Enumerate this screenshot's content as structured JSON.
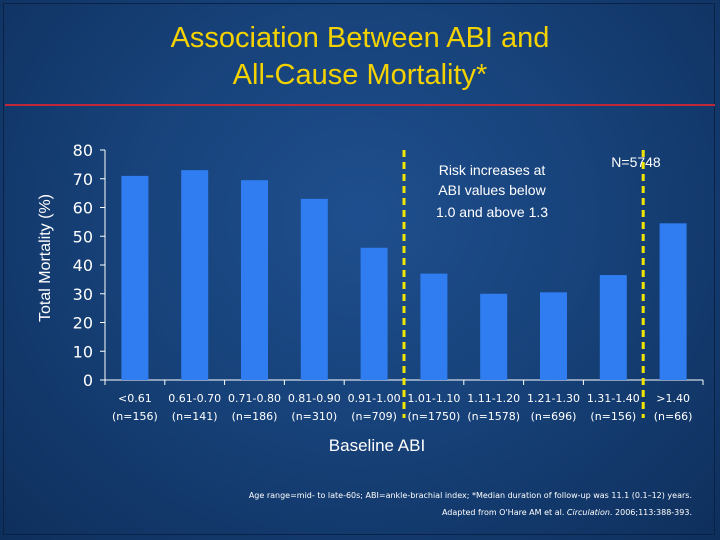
{
  "title_line1": "Association Between ABI and",
  "title_line2": "All-Cause Mortality*",
  "annotation_lines": [
    "Risk increases at",
    "ABI values below",
    "1.0 and above 1.3"
  ],
  "sample_size": "N=5748",
  "footnote": {
    "line1": "Age range=mid- to late-60s; ABI=ankle-brachial index; *Median duration of follow-up was 11.1 (0.1–12) years.",
    "line2_prefix": "Adapted from O'Hare AM et al. ",
    "line2_journal": "Circulation",
    "line2_suffix": ". 2006;113:388-393."
  },
  "colors": {
    "bar": "#2f7df0",
    "title": "#f4d200",
    "divider": "#c0283a",
    "guide": "#f2e600",
    "text": "#ffffff"
  },
  "chart_data": {
    "type": "bar",
    "title": "Association Between ABI and All-Cause Mortality*",
    "xlabel": "Baseline ABI",
    "ylabel": "Total Mortality (%)",
    "ylim": [
      0,
      80
    ],
    "yticks": [
      0,
      10,
      20,
      30,
      40,
      50,
      60,
      70,
      80
    ],
    "grid": false,
    "categories": [
      "<0.61",
      "0.61-0.70",
      "0.71-0.80",
      "0.81-0.90",
      "0.91-1.00",
      "1.01-1.10",
      "1.11-1.20",
      "1.21-1.30",
      "1.31-1.40",
      ">1.40"
    ],
    "counts": [
      "(n=156)",
      "(n=141)",
      "(n=186)",
      "(n=310)",
      "(n=709)",
      "(n=1750)",
      "(n=1578)",
      "(n=696)",
      "(n=156)",
      "(n=66)"
    ],
    "values": [
      71,
      73,
      69.5,
      63,
      46,
      37,
      30,
      30.5,
      36.5,
      54.5
    ],
    "reference_lines_between": [
      [
        4,
        5
      ],
      [
        8,
        9
      ]
    ]
  }
}
